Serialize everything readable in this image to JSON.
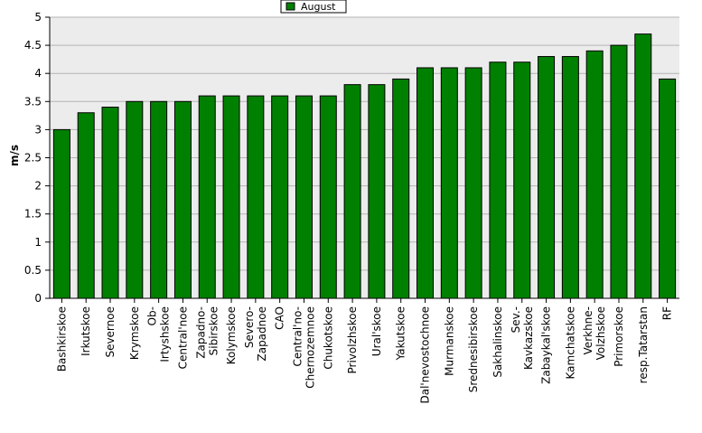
{
  "chart_data": {
    "type": "bar",
    "ylabel": "m/s",
    "xlabel": "",
    "ylim": [
      0,
      5
    ],
    "yticks": [
      "0",
      "0.5",
      "1",
      "1.5",
      "2",
      "2.5",
      "3",
      "3.5",
      "4",
      "4.5",
      "5"
    ],
    "grid": true,
    "legend_position": "top-center",
    "series": [
      {
        "name": "August",
        "color": "#008000",
        "values": [
          3.0,
          3.3,
          3.4,
          3.5,
          3.5,
          3.5,
          3.6,
          3.6,
          3.6,
          3.6,
          3.6,
          3.6,
          3.8,
          3.8,
          3.9,
          4.1,
          4.1,
          4.1,
          4.2,
          4.2,
          4.3,
          4.3,
          4.4,
          4.5,
          4.7,
          3.9
        ]
      }
    ],
    "categories": [
      [
        "Bashkirskoe"
      ],
      [
        "Irkutskoe"
      ],
      [
        "Severnoe"
      ],
      [
        "Krymskoe"
      ],
      [
        "Ob-",
        "Irtyshskoe"
      ],
      [
        "Central'noe"
      ],
      [
        "Zapadno-",
        "Sibirskoe"
      ],
      [
        "Kolymskoe"
      ],
      [
        "Severo-",
        "Zapadnoe"
      ],
      [
        "CAO"
      ],
      [
        "Central'no-",
        "Chernozemnoe"
      ],
      [
        "Chukotskoe"
      ],
      [
        "Privolzhskoe"
      ],
      [
        "Ural'skoe"
      ],
      [
        "Yakutskoe"
      ],
      [
        "Dal'nevostochnoe"
      ],
      [
        "Murmanskoe"
      ],
      [
        "Srednesibirskoe"
      ],
      [
        "Sakhalinskoe"
      ],
      [
        "Sev.-",
        "Kavkazskoe"
      ],
      [
        "Zabaykal'skoe"
      ],
      [
        "Kamchatskoe"
      ],
      [
        "Verkhne-",
        "Volzhskoe"
      ],
      [
        "Primorskoe"
      ],
      [
        "resp.Tatarstan"
      ],
      [
        "RF"
      ]
    ],
    "colors": {
      "plot_background": "#ececec",
      "grid": "#b4b4b4",
      "bar": "#008000",
      "bar_border": "#000000"
    }
  }
}
